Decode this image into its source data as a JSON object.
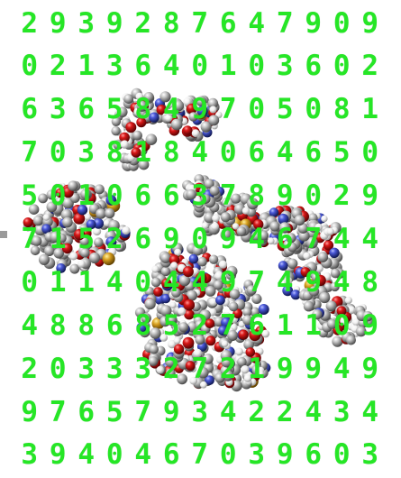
{
  "image": {
    "subject": "protein-molecule-space-filling-render",
    "colors": {
      "digits": "#26e626",
      "carbon": "#a9a9a9",
      "oxygen": "#d01010",
      "nitrogen": "#4050d8",
      "hydrogen": "#f2f2f2",
      "sulfur": "#d8a020",
      "background": "#ffffff"
    },
    "digit_rows": [
      "2939287647909",
      "0213640103602",
      "6365849705081",
      "7038184064650",
      "5010663789029",
      "7152690946744",
      "0114044974948",
      "4886852761109",
      "2033327219949",
      "9765793422434",
      "3940467039603"
    ]
  }
}
